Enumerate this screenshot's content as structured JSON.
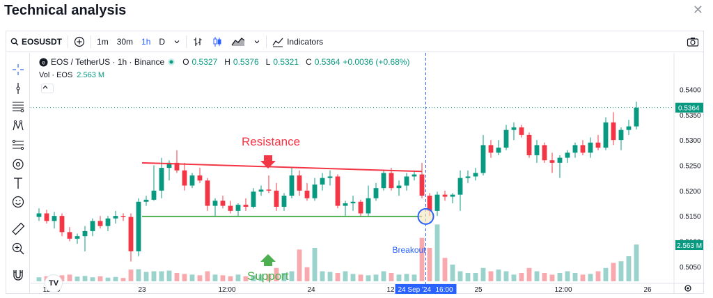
{
  "page": {
    "title": "Technical analysis",
    "close_icon": "close-icon"
  },
  "toolbar": {
    "symbol": "EOSUSDT",
    "intervals": [
      "1m",
      "30m",
      "1h",
      "D"
    ],
    "active_interval": "1h",
    "indicators_label": "Indicators"
  },
  "legend": {
    "pair": "EOS / TetherUS · 1h · Binance",
    "open_label": "O",
    "open": "0.5327",
    "high_label": "H",
    "high": "0.5376",
    "low_label": "L",
    "low": "0.5321",
    "close_label": "C",
    "close": "0.5364",
    "change": "+0.0036 (+0.68%)",
    "vol_label": "Vol · EOS",
    "vol_value": "2.563 M"
  },
  "annotations": {
    "resistance": "Resistance",
    "support": "Support",
    "breakout": "Breakout"
  },
  "colors": {
    "up": "#089981",
    "down": "#f23645",
    "vol_up": "#9ad3cb",
    "vol_down": "#f7a9ae",
    "resistance": "#f23645",
    "support": "#4caf50",
    "breakout": "#2962ff"
  },
  "chart_data": {
    "type": "candlestick",
    "price_axis": [
      "0.5400",
      "0.5350",
      "0.5300",
      "0.5250",
      "0.5200",
      "0.5150",
      "0.5100",
      "0.5050"
    ],
    "ylim": [
      0.5018,
      0.542
    ],
    "time_axis": [
      "12:00",
      "23",
      "12:00",
      "24",
      "12",
      "25",
      "12:00",
      "26"
    ],
    "crosshair_label": "24 Sep '24",
    "crosshair_time": "16:00",
    "last_price": "0.5364",
    "last_volume": "2.563 M",
    "resistance_line": {
      "start": 0.5255,
      "end": 0.5238
    },
    "support_line": 0.5149,
    "candles": [
      [
        0.5148,
        0.5165,
        0.514,
        0.5155
      ],
      [
        0.5155,
        0.5162,
        0.5135,
        0.514
      ],
      [
        0.514,
        0.5158,
        0.5125,
        0.515
      ],
      [
        0.515,
        0.5155,
        0.511,
        0.5118
      ],
      [
        0.5118,
        0.5128,
        0.51,
        0.5105
      ],
      [
        0.5105,
        0.5115,
        0.5095,
        0.511
      ],
      [
        0.511,
        0.513,
        0.508,
        0.512
      ],
      [
        0.512,
        0.5145,
        0.511,
        0.514
      ],
      [
        0.514,
        0.515,
        0.5125,
        0.513
      ],
      [
        0.513,
        0.515,
        0.512,
        0.5145
      ],
      [
        0.5145,
        0.516,
        0.5135,
        0.515
      ],
      [
        0.515,
        0.5155,
        0.514,
        0.5148
      ],
      [
        0.5148,
        0.5155,
        0.506,
        0.508
      ],
      [
        0.508,
        0.5185,
        0.507,
        0.5178
      ],
      [
        0.5178,
        0.519,
        0.517,
        0.5182
      ],
      [
        0.5182,
        0.525,
        0.518,
        0.52
      ],
      [
        0.52,
        0.5265,
        0.5185,
        0.5245
      ],
      [
        0.5245,
        0.526,
        0.522,
        0.5255
      ],
      [
        0.5255,
        0.528,
        0.5235,
        0.524
      ],
      [
        0.524,
        0.5255,
        0.52,
        0.521
      ],
      [
        0.521,
        0.5235,
        0.5205,
        0.523
      ],
      [
        0.523,
        0.5245,
        0.5215,
        0.522
      ],
      [
        0.522,
        0.5225,
        0.516,
        0.517
      ],
      [
        0.517,
        0.5185,
        0.515,
        0.518
      ],
      [
        0.518,
        0.519,
        0.5165,
        0.517
      ],
      [
        0.517,
        0.518,
        0.5155,
        0.516
      ],
      [
        0.516,
        0.5175,
        0.515,
        0.5172
      ],
      [
        0.5172,
        0.5185,
        0.516,
        0.5168
      ],
      [
        0.5168,
        0.5205,
        0.5165,
        0.5198
      ],
      [
        0.5198,
        0.521,
        0.519,
        0.5202
      ],
      [
        0.5202,
        0.523,
        0.5195,
        0.52
      ],
      [
        0.52,
        0.5215,
        0.516,
        0.5168
      ],
      [
        0.5168,
        0.5195,
        0.516,
        0.519
      ],
      [
        0.519,
        0.5245,
        0.5185,
        0.523
      ],
      [
        0.523,
        0.524,
        0.519,
        0.52
      ],
      [
        0.52,
        0.5215,
        0.518,
        0.5185
      ],
      [
        0.5185,
        0.5225,
        0.518,
        0.5212
      ],
      [
        0.5212,
        0.5235,
        0.52,
        0.5225
      ],
      [
        0.5225,
        0.524,
        0.521,
        0.5228
      ],
      [
        0.5228,
        0.5232,
        0.5165,
        0.517
      ],
      [
        0.517,
        0.518,
        0.515,
        0.5175
      ],
      [
        0.5175,
        0.519,
        0.516,
        0.5178
      ],
      [
        0.5178,
        0.5182,
        0.515,
        0.5155
      ],
      [
        0.5155,
        0.521,
        0.515,
        0.5185
      ],
      [
        0.5185,
        0.5215,
        0.518,
        0.5205
      ],
      [
        0.5205,
        0.524,
        0.52,
        0.5235
      ],
      [
        0.5235,
        0.5245,
        0.52,
        0.5205
      ],
      [
        0.5205,
        0.522,
        0.519,
        0.521
      ],
      [
        0.521,
        0.5235,
        0.52,
        0.5228
      ],
      [
        0.5228,
        0.524,
        0.522,
        0.5232
      ],
      [
        0.5232,
        0.5255,
        0.5185,
        0.519
      ],
      [
        0.519,
        0.5195,
        0.515,
        0.516
      ],
      [
        0.516,
        0.5198,
        0.515,
        0.5192
      ],
      [
        0.5192,
        0.52,
        0.518,
        0.5188
      ],
      [
        0.5188,
        0.5195,
        0.5175,
        0.5192
      ],
      [
        0.5192,
        0.524,
        0.516,
        0.5225
      ],
      [
        0.5225,
        0.524,
        0.5215,
        0.5228
      ],
      [
        0.5228,
        0.5245,
        0.522,
        0.5235
      ],
      [
        0.5235,
        0.531,
        0.523,
        0.529
      ],
      [
        0.529,
        0.53,
        0.5265,
        0.5275
      ],
      [
        0.5275,
        0.53,
        0.527,
        0.5285
      ],
      [
        0.5285,
        0.533,
        0.528,
        0.532
      ],
      [
        0.532,
        0.5335,
        0.53,
        0.5325
      ],
      [
        0.5325,
        0.533,
        0.5305,
        0.531
      ],
      [
        0.531,
        0.5315,
        0.5265,
        0.527
      ],
      [
        0.527,
        0.53,
        0.5255,
        0.529
      ],
      [
        0.529,
        0.5295,
        0.5255,
        0.526
      ],
      [
        0.526,
        0.5275,
        0.5235,
        0.5255
      ],
      [
        0.5255,
        0.527,
        0.5225,
        0.5265
      ],
      [
        0.5265,
        0.528,
        0.5255,
        0.5275
      ],
      [
        0.5275,
        0.5295,
        0.5265,
        0.529
      ],
      [
        0.529,
        0.53,
        0.527,
        0.5275
      ],
      [
        0.5275,
        0.5305,
        0.5265,
        0.5295
      ],
      [
        0.5295,
        0.531,
        0.528,
        0.5285
      ],
      [
        0.5285,
        0.5345,
        0.528,
        0.5335
      ],
      [
        0.5335,
        0.5355,
        0.529,
        0.53
      ],
      [
        0.53,
        0.5325,
        0.528,
        0.532
      ],
      [
        0.532,
        0.534,
        0.531,
        0.5327
      ],
      [
        0.5327,
        0.5376,
        0.5321,
        0.5364
      ]
    ],
    "volumes": [
      0.12,
      0.15,
      0.1,
      0.18,
      0.2,
      0.14,
      0.16,
      0.12,
      0.15,
      0.11,
      0.13,
      0.1,
      0.35,
      0.36,
      0.28,
      0.3,
      0.3,
      0.32,
      0.25,
      0.22,
      0.2,
      0.18,
      0.3,
      0.2,
      0.18,
      0.15,
      0.2,
      0.15,
      0.18,
      0.2,
      0.22,
      0.4,
      0.25,
      0.3,
      0.95,
      0.42,
      1.0,
      0.3,
      0.28,
      0.25,
      0.3,
      0.22,
      0.2,
      0.18,
      0.2,
      0.3,
      0.25,
      0.2,
      0.22,
      0.2,
      1.3,
      1.0,
      1.7,
      0.7,
      0.5,
      0.3,
      0.25,
      0.25,
      0.4,
      0.3,
      0.35,
      0.3,
      0.2,
      0.25,
      0.4,
      0.3,
      0.25,
      0.2,
      0.25,
      0.3,
      0.25,
      0.2,
      0.22,
      0.3,
      0.4,
      0.55,
      0.6,
      0.75,
      1.1
    ]
  }
}
